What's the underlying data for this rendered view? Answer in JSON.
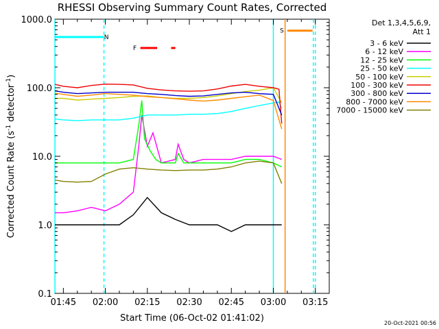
{
  "chart_data": {
    "type": "line",
    "title": "RHESSI Observing Summary Count Rates, Corrected",
    "xlabel": "Start Time (06-Oct-02 01:41:02)",
    "ylabel_main": "Corrected Count Rate (s",
    "ylabel_sup1": "-1",
    "ylabel_mid": " detector",
    "ylabel_sup2": "-1",
    "ylabel_end": ")",
    "y_scale": "log",
    "ylim": [
      0.1,
      1000
    ],
    "xlim_minutes": [
      -3.03,
      94.97
    ],
    "x_ticks": [
      {
        "t": 0,
        "label": "01:45"
      },
      {
        "t": 15,
        "label": "02:00"
      },
      {
        "t": 30,
        "label": "02:15"
      },
      {
        "t": 45,
        "label": "02:30"
      },
      {
        "t": 60,
        "label": "02:45"
      },
      {
        "t": 75,
        "label": "03:00"
      },
      {
        "t": 90,
        "label": "03:15"
      }
    ],
    "y_ticks": [
      {
        "v": 0.1,
        "label": "0.1"
      },
      {
        "v": 1,
        "label": "1.0"
      },
      {
        "v": 10,
        "label": "10.0"
      },
      {
        "v": 100,
        "label": "100.0"
      },
      {
        "v": 1000,
        "label": "1000.0"
      }
    ],
    "legend_header": [
      "Det 1,3,4,5,6,9,",
      "Att 1"
    ],
    "series": [
      {
        "name": "3 - 6 keV",
        "color": "#000000",
        "t": [
          -3,
          0,
          5,
          10,
          15,
          20,
          25,
          30,
          35,
          40,
          45,
          50,
          55,
          60,
          65,
          70,
          75,
          78
        ],
        "v": [
          1,
          1,
          1,
          1,
          1,
          1,
          1.4,
          2.5,
          1.5,
          1.2,
          1,
          1,
          1,
          0.8,
          1,
          1,
          1,
          1
        ]
      },
      {
        "name": "6 - 12 keV",
        "color": "#ff00ff",
        "t": [
          -3,
          0,
          5,
          10,
          15,
          20,
          25,
          27,
          28,
          30,
          32,
          35,
          40,
          41,
          43,
          45,
          50,
          55,
          60,
          65,
          70,
          75,
          78
        ],
        "v": [
          1.5,
          1.5,
          1.6,
          1.8,
          1.6,
          2,
          3,
          15,
          40,
          14,
          22,
          8,
          9,
          15,
          9,
          8,
          9,
          9,
          9,
          10,
          10,
          10,
          9
        ]
      },
      {
        "name": "12 - 25 keV",
        "color": "#00ff00",
        "t": [
          -3,
          0,
          5,
          10,
          15,
          20,
          25,
          27,
          28,
          29,
          31,
          33,
          35,
          40,
          41,
          43,
          45,
          50,
          55,
          60,
          65,
          70,
          75,
          78
        ],
        "v": [
          8,
          8,
          8,
          8,
          8,
          8,
          9,
          30,
          65,
          18,
          12,
          9,
          8,
          8,
          11,
          8,
          8,
          8,
          8,
          8,
          9,
          9,
          8,
          7
        ]
      },
      {
        "name": "25 - 50 keV",
        "color": "#00ffff",
        "t": [
          -3,
          0,
          5,
          10,
          15,
          20,
          25,
          30,
          35,
          40,
          45,
          50,
          55,
          60,
          65,
          70,
          75,
          77,
          78
        ],
        "v": [
          35,
          34,
          33,
          34,
          34,
          34,
          36,
          40,
          40,
          40,
          41,
          41,
          42,
          45,
          50,
          55,
          60,
          62,
          50
        ]
      },
      {
        "name": "50 - 100 keV",
        "color": "#cccc00",
        "t": [
          -3,
          0,
          5,
          10,
          15,
          20,
          25,
          30,
          35,
          40,
          45,
          50,
          55,
          60,
          65,
          70,
          75,
          78
        ],
        "v": [
          70,
          70,
          66,
          68,
          70,
          72,
          75,
          76,
          72,
          70,
          70,
          72,
          76,
          82,
          88,
          92,
          100,
          60
        ]
      },
      {
        "name": "100 - 300 keV",
        "color": "#ee0000",
        "t": [
          -3,
          0,
          5,
          10,
          15,
          20,
          25,
          30,
          35,
          40,
          45,
          50,
          55,
          60,
          65,
          70,
          75,
          77,
          78
        ],
        "v": [
          112,
          105,
          100,
          108,
          113,
          112,
          110,
          98,
          93,
          90,
          89,
          90,
          96,
          106,
          112,
          105,
          100,
          95,
          30
        ]
      },
      {
        "name": "300 - 800 keV",
        "color": "#0000cc",
        "t": [
          -3,
          0,
          5,
          10,
          15,
          20,
          25,
          30,
          35,
          40,
          45,
          50,
          55,
          60,
          65,
          70,
          75,
          78
        ],
        "v": [
          90,
          86,
          82,
          84,
          86,
          86,
          86,
          82,
          80,
          77,
          75,
          76,
          80,
          84,
          86,
          82,
          80,
          40
        ]
      },
      {
        "name": "800 - 7000 keV",
        "color": "#ff8800",
        "t": [
          -3,
          0,
          5,
          10,
          15,
          20,
          25,
          30,
          35,
          40,
          45,
          50,
          55,
          60,
          65,
          70,
          75,
          78
        ],
        "v": [
          83,
          80,
          75,
          78,
          82,
          80,
          78,
          74,
          72,
          69,
          66,
          64,
          66,
          70,
          74,
          78,
          65,
          25
        ]
      },
      {
        "name": "7000 - 15000 keV",
        "color": "#808000",
        "t": [
          -3,
          0,
          5,
          10,
          15,
          20,
          25,
          30,
          35,
          40,
          45,
          50,
          55,
          60,
          65,
          70,
          75,
          78
        ],
        "v": [
          4.5,
          4.3,
          4.2,
          4.3,
          5.5,
          6.5,
          6.8,
          6.5,
          6.3,
          6.2,
          6.3,
          6.3,
          6.5,
          7,
          8,
          8.5,
          8,
          4
        ]
      }
    ],
    "event_bars": [
      {
        "label": "N",
        "label_color": "#00ffff",
        "color": "#00ffff",
        "y": 550,
        "segments": [
          [
            -3,
            14.5
          ]
        ]
      },
      {
        "label": "F",
        "label_color": "#ff0000",
        "color": "#ff0000",
        "y": 380,
        "segments": [
          [
            27.5,
            33.5
          ],
          [
            38.5,
            40
          ]
        ]
      },
      {
        "label": "S",
        "label_color": "#ff8800",
        "color": "#ff8800",
        "y": 680,
        "segments": [
          [
            80,
            89
          ]
        ]
      }
    ],
    "vertical_lines": [
      {
        "t": -3,
        "color": "#00ffff",
        "dashed": false
      },
      {
        "t": 14.5,
        "color": "#00ffff",
        "dashed": true
      },
      {
        "t": 75,
        "color": "#00ffff",
        "dashed": false
      },
      {
        "t": 79.2,
        "color": "#ff8800",
        "dashed": false
      },
      {
        "t": 89.3,
        "color": "#00ffff",
        "dashed": true
      },
      {
        "t": 90,
        "color": "#00ffff",
        "dashed": true
      }
    ],
    "grid": false,
    "legend_position": "right"
  },
  "footer_timestamp": "20-Oct-2021 00:56"
}
